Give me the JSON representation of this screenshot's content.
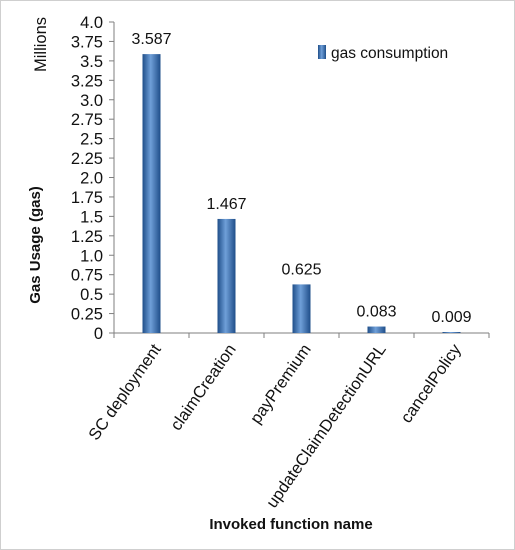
{
  "chart_data": {
    "type": "bar",
    "categories": [
      "SC deployment",
      "claimCreation",
      "payPremium",
      "updateClaimDetectionURL",
      "cancelPolicy"
    ],
    "series": [
      {
        "name": "gas consumption",
        "values": [
          3.587,
          1.467,
          0.625,
          0.083,
          0.009
        ]
      }
    ],
    "data_labels": [
      "3.587",
      "1.467",
      "0.625",
      "0.083",
      "0.009"
    ],
    "ylabel": "Gas Usage (gas)",
    "xlabel": "Invoked function name",
    "y_units": "Millions",
    "ylim": [
      0,
      4.0
    ],
    "y_ticks": [
      "0",
      "0.25",
      "0.5",
      "0.75",
      "1.0",
      "1.25",
      "1.5",
      "1.75",
      "2.0",
      "2.25",
      "2.5",
      "2.75",
      "3.0",
      "3.25",
      "3.5",
      "3.75",
      "4.0"
    ],
    "y_tick_values": [
      0,
      0.25,
      0.5,
      0.75,
      1.0,
      1.25,
      1.5,
      1.75,
      2.0,
      2.25,
      2.5,
      2.75,
      3.0,
      3.25,
      3.5,
      3.75,
      4.0
    ],
    "grid": false,
    "legend_position": "top-right",
    "bar_color": "#4f81bd"
  }
}
